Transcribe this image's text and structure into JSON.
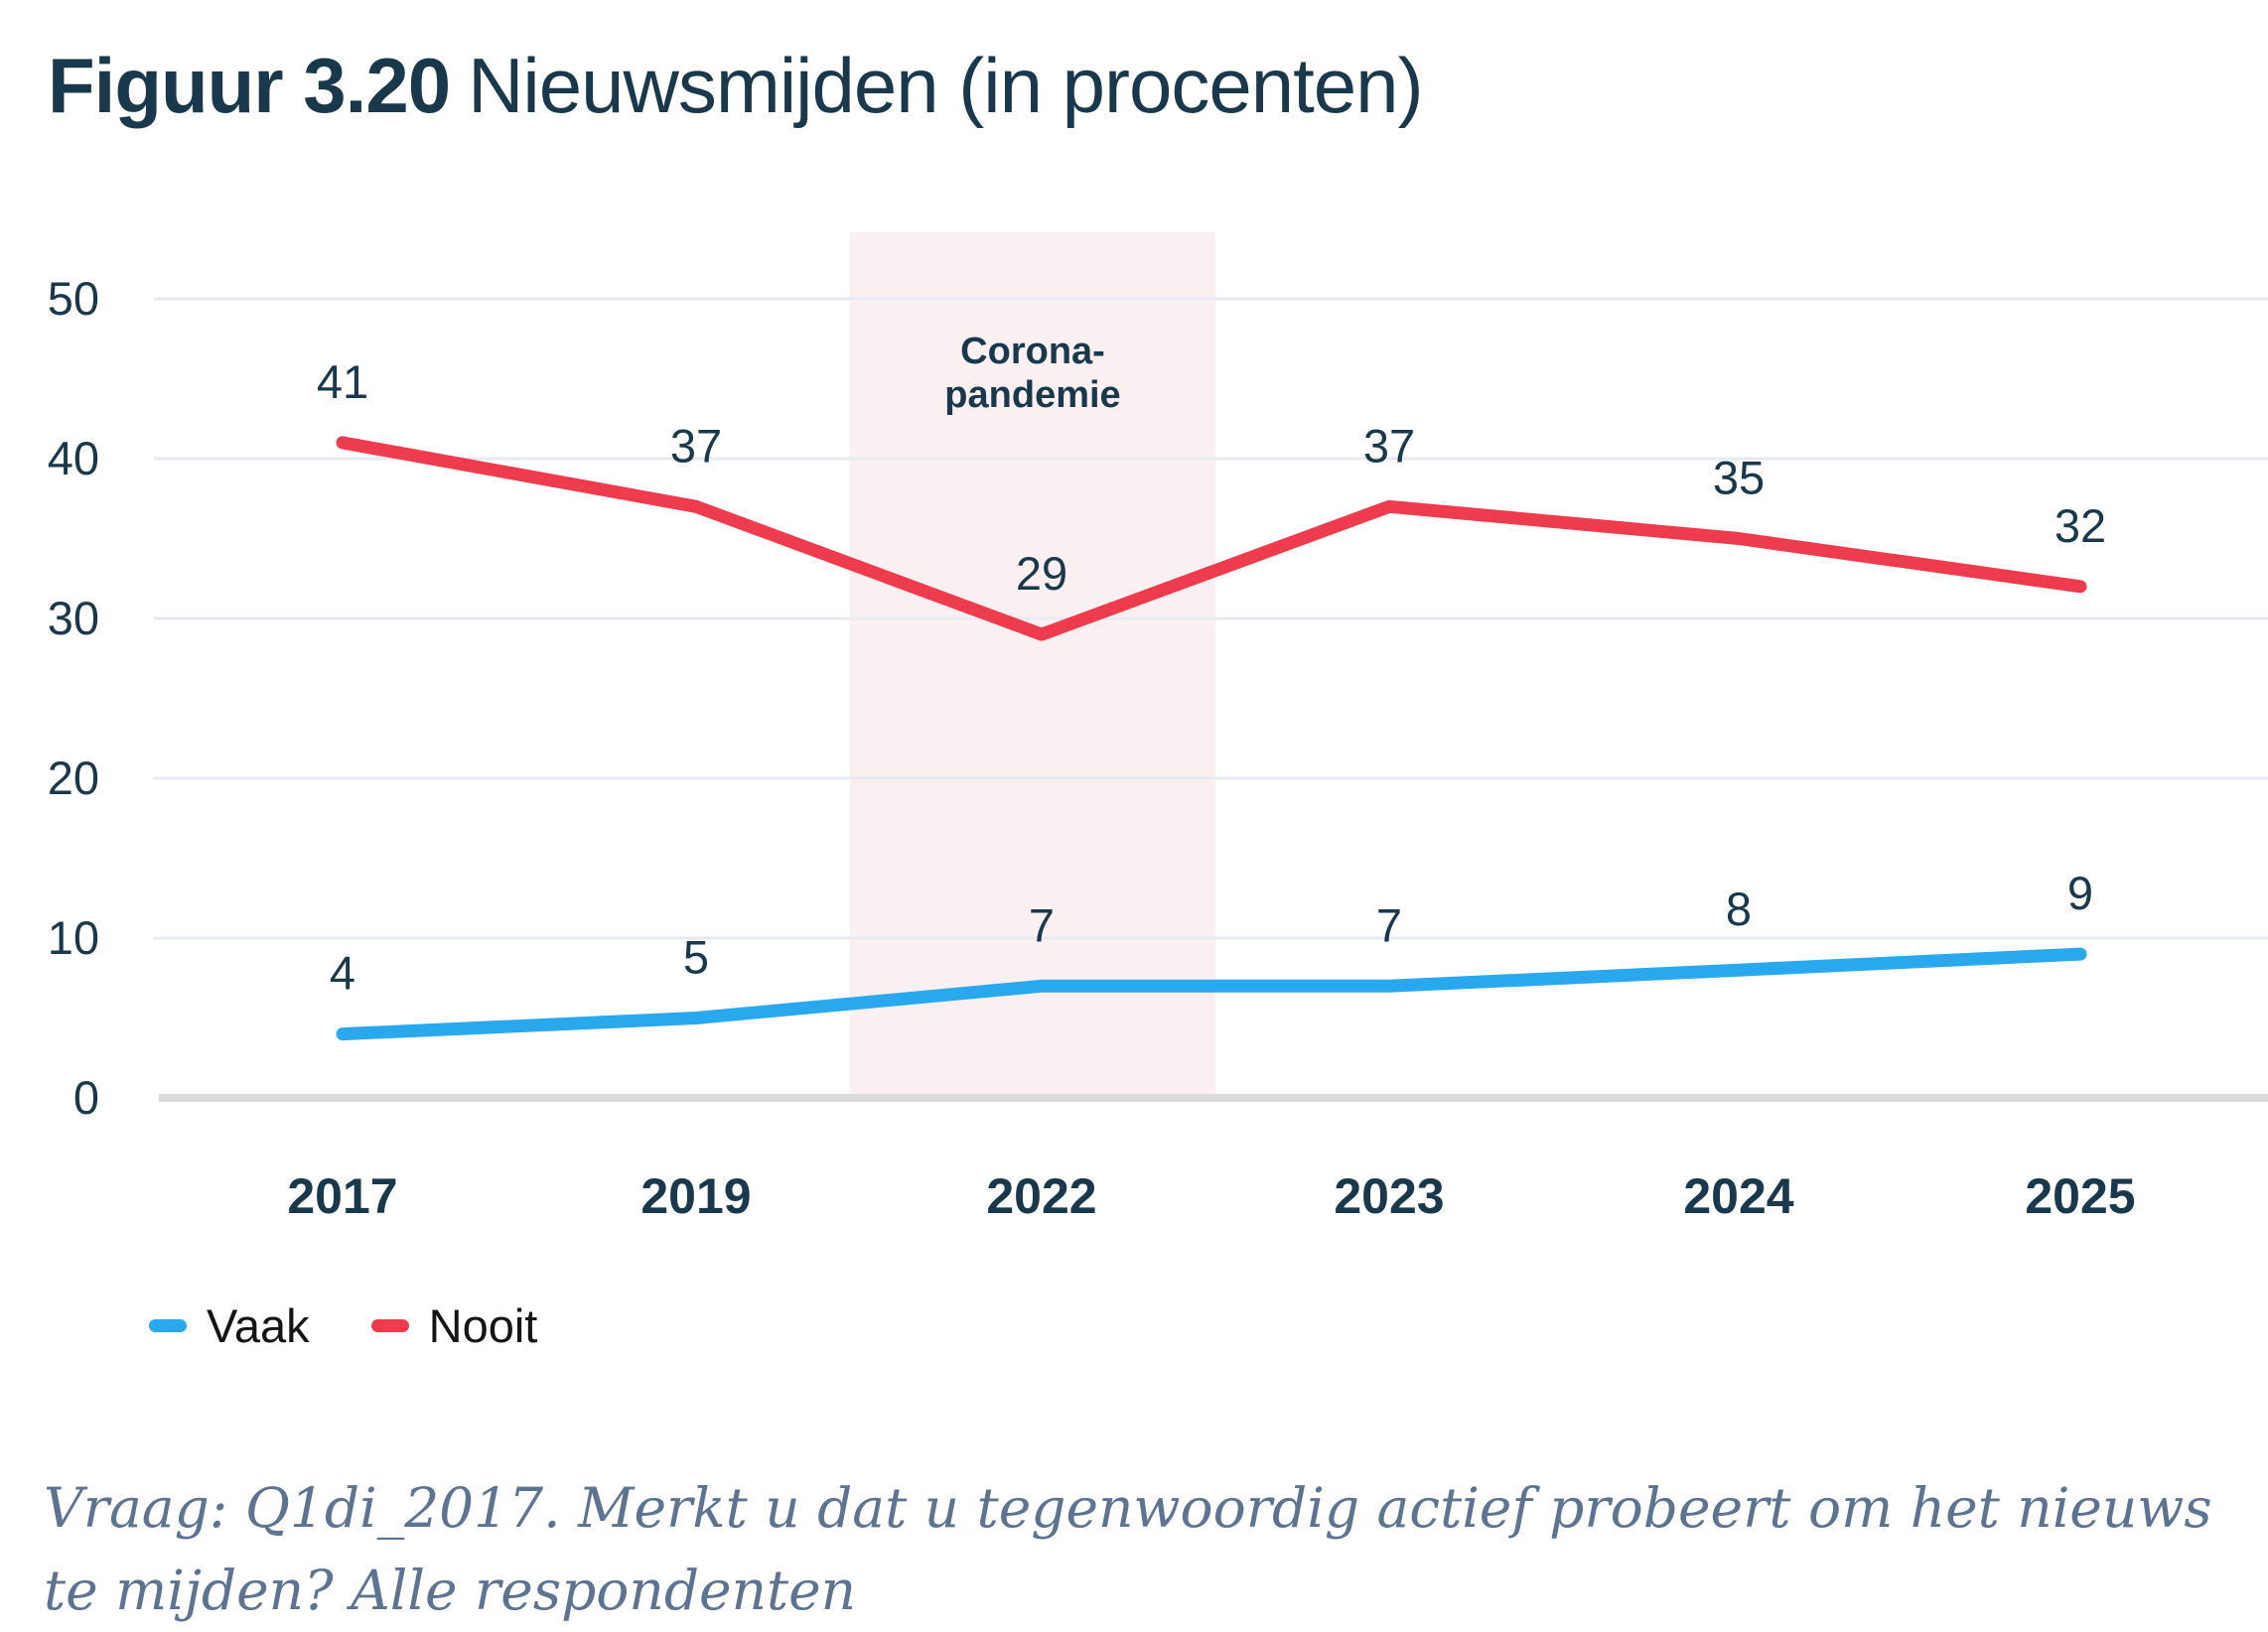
{
  "title": {
    "prefix": "Figuur 3.20",
    "text": "Nieuwsmijden (in procenten)"
  },
  "chart_data": {
    "type": "line",
    "categories": [
      "2017",
      "2019",
      "2022",
      "2023",
      "2024",
      "2025"
    ],
    "series": [
      {
        "name": "Vaak",
        "color": "#29A8EE",
        "values": [
          4,
          5,
          7,
          7,
          8,
          9
        ]
      },
      {
        "name": "Nooit",
        "color": "#EE3B4E",
        "values": [
          41,
          37,
          29,
          37,
          35,
          32
        ]
      }
    ],
    "ylim": [
      0,
      50
    ],
    "yticks": [
      0,
      10,
      20,
      30,
      40,
      50
    ],
    "grid": true,
    "legend_position": "bottom-left",
    "annotation": {
      "lines": [
        "Corona-",
        "pandemie"
      ],
      "span_category": "2022",
      "band_color": "#FBF0F1"
    }
  },
  "legend": [
    {
      "label": "Vaak",
      "color": "#29A8EE"
    },
    {
      "label": "Nooit",
      "color": "#EE3B4E"
    }
  ],
  "caption": {
    "text": "Vraag: Q1di_2017. Merkt u dat u tegenwoordig actief probeert om het nieuws te mijden? Alle respondenten"
  },
  "colors": {
    "text_navy": "#1A384C",
    "gridline": "#E7EAF0",
    "axis_line": "#D9D9D9",
    "band": "#FBF0F1",
    "caption": "#5C7492",
    "legend_text": "#141414"
  }
}
